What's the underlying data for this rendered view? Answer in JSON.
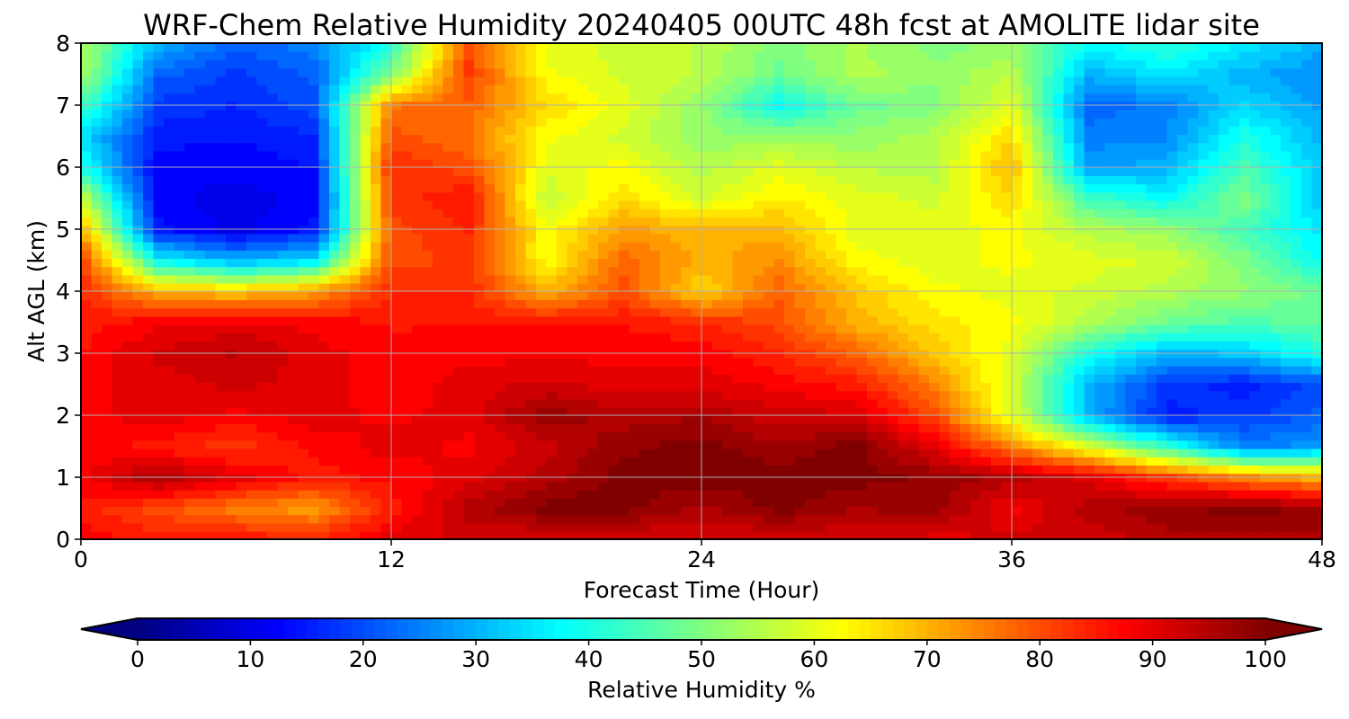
{
  "chart_data": {
    "type": "heatmap",
    "title": "WRF-Chem Relative Humidity 20240405 00UTC 48h fcst at AMOLITE lidar site",
    "xlabel": "Forecast Time (Hour)",
    "ylabel": "Alt AGL (km)",
    "xlim": [
      0,
      48
    ],
    "ylim": [
      0,
      8
    ],
    "xticks": [
      0,
      12,
      24,
      36,
      48
    ],
    "yticks": [
      0,
      1,
      2,
      3,
      4,
      5,
      6,
      7,
      8
    ],
    "grid": true,
    "colormap": "jet",
    "colorbar": {
      "label": "Relative Humidity %",
      "min": 0,
      "max": 100,
      "ticks": [
        0,
        10,
        20,
        30,
        40,
        50,
        60,
        70,
        80,
        90,
        100
      ],
      "extend": "both",
      "orientation": "horizontal",
      "placement": "bottom"
    },
    "x": [
      0,
      3,
      6,
      9,
      12,
      15,
      18,
      21,
      24,
      27,
      30,
      33,
      36,
      39,
      42,
      45,
      48
    ],
    "y": [
      0,
      0.5,
      1,
      1.5,
      2,
      2.5,
      3,
      3.5,
      4,
      4.5,
      5,
      5.5,
      6,
      6.5,
      7,
      7.5,
      8
    ],
    "z": [
      [
        88,
        85,
        86,
        84,
        90,
        92,
        90,
        90,
        92,
        90,
        92,
        90,
        92,
        92,
        95,
        95,
        96
      ],
      [
        85,
        80,
        75,
        72,
        85,
        95,
        100,
        100,
        95,
        100,
        96,
        98,
        88,
        95,
        98,
        100,
        98
      ],
      [
        88,
        96,
        90,
        85,
        87,
        90,
        95,
        100,
        100,
        100,
        100,
        98,
        95,
        90,
        82,
        75,
        70
      ],
      [
        88,
        85,
        82,
        87,
        90,
        88,
        93,
        98,
        100,
        97,
        100,
        90,
        75,
        60,
        42,
        25,
        28
      ],
      [
        88,
        90,
        88,
        90,
        88,
        90,
        98,
        95,
        96,
        92,
        92,
        80,
        60,
        30,
        15,
        18,
        22
      ],
      [
        88,
        90,
        92,
        90,
        87,
        90,
        92,
        90,
        90,
        88,
        85,
        75,
        58,
        30,
        18,
        15,
        20
      ],
      [
        86,
        92,
        94,
        90,
        87,
        88,
        88,
        88,
        88,
        84,
        78,
        68,
        60,
        40,
        30,
        32,
        40
      ],
      [
        85,
        88,
        90,
        88,
        86,
        86,
        86,
        86,
        84,
        80,
        70,
        65,
        62,
        55,
        48,
        45,
        48
      ],
      [
        84,
        70,
        68,
        72,
        84,
        84,
        70,
        80,
        66,
        78,
        68,
        62,
        60,
        58,
        55,
        52,
        48
      ],
      [
        82,
        38,
        30,
        35,
        80,
        82,
        62,
        78,
        70,
        74,
        62,
        60,
        62,
        60,
        58,
        50,
        38
      ],
      [
        72,
        15,
        10,
        15,
        80,
        84,
        62,
        72,
        70,
        70,
        60,
        60,
        62,
        55,
        52,
        44,
        35
      ],
      [
        58,
        12,
        10,
        12,
        82,
        86,
        56,
        66,
        58,
        64,
        60,
        58,
        66,
        44,
        38,
        50,
        32
      ],
      [
        40,
        12,
        12,
        14,
        84,
        80,
        60,
        62,
        55,
        60,
        56,
        55,
        70,
        28,
        30,
        45,
        32
      ],
      [
        35,
        15,
        14,
        16,
        80,
        76,
        62,
        58,
        52,
        52,
        52,
        55,
        66,
        25,
        26,
        40,
        30
      ],
      [
        45,
        18,
        16,
        20,
        76,
        78,
        66,
        60,
        52,
        38,
        48,
        50,
        60,
        22,
        25,
        34,
        28
      ],
      [
        55,
        22,
        18,
        22,
        50,
        82,
        62,
        58,
        56,
        48,
        55,
        52,
        56,
        30,
        35,
        30,
        26
      ],
      [
        55,
        30,
        22,
        25,
        40,
        80,
        60,
        58,
        56,
        50,
        54,
        50,
        52,
        38,
        42,
        36,
        30
      ]
    ]
  }
}
